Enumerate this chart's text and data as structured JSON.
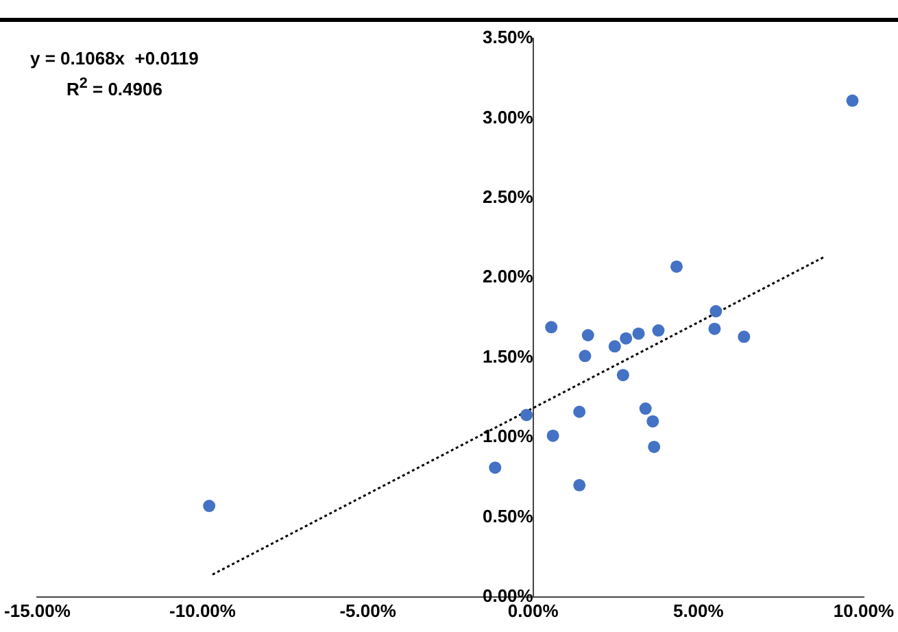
{
  "chart_data": {
    "type": "scatter",
    "annotations": [
      "y = 0.1068x  +0.0119",
      "R$^{2}$ = 0.4906"
    ],
    "xlim": [
      -15,
      10
    ],
    "xticks": [
      {
        "value": -15,
        "label": "-15.00%"
      },
      {
        "value": -10,
        "label": "-10.00%"
      },
      {
        "value": -5,
        "label": "-5.00%"
      },
      {
        "value": 0,
        "label": "0.00%"
      },
      {
        "value": 5,
        "label": "5.00%"
      },
      {
        "value": 10,
        "label": "10.00%"
      }
    ],
    "ylim": [
      0,
      3.5
    ],
    "yticks": [
      {
        "value": 0,
        "label": "0.00%"
      },
      {
        "value": 0.5,
        "label": "0.50%"
      },
      {
        "value": 1,
        "label": "1.00%"
      },
      {
        "value": 1.5,
        "label": "1.50%"
      },
      {
        "value": 2,
        "label": "2.00%"
      },
      {
        "value": 2.5,
        "label": "2.50%"
      },
      {
        "value": 3,
        "label": "3.00%"
      },
      {
        "value": 3.5,
        "label": "3.50%"
      }
    ],
    "grid": false,
    "legend": false,
    "marker": "circle",
    "series": [
      {
        "type": "scatter",
        "color": "#4472c4",
        "x": [
          -9.8,
          -1.15,
          -0.2,
          0.55,
          0.6,
          1.4,
          1.4,
          1.57,
          1.66,
          2.47,
          2.72,
          2.81,
          3.19,
          3.4,
          3.62,
          3.66,
          3.79,
          4.34,
          5.49,
          5.53,
          6.38,
          9.66
        ],
        "values": [
          0.57,
          0.81,
          1.14,
          1.69,
          1.01,
          1.16,
          0.7,
          1.51,
          1.64,
          1.57,
          1.39,
          1.62,
          1.65,
          1.18,
          1.1,
          0.94,
          1.67,
          2.07,
          1.68,
          1.79,
          1.63,
          3.11
        ]
      },
      {
        "type": "line",
        "color": "#000000",
        "line_style": "dotted",
        "marker": "none",
        "x": [
          -9.7,
          8.8
        ],
        "values": [
          0.14,
          2.13
        ]
      }
    ]
  }
}
